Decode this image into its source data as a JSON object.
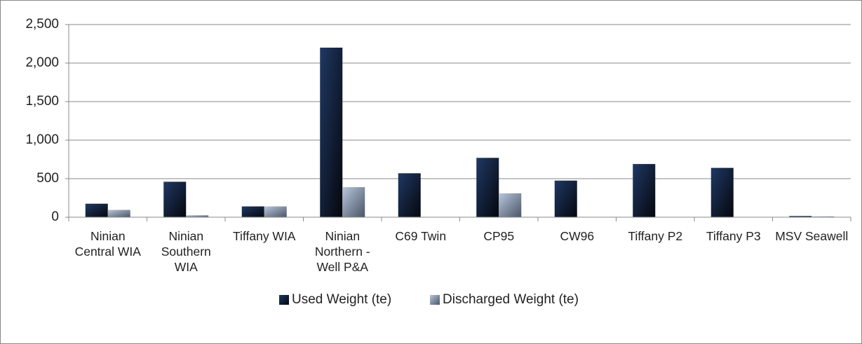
{
  "chart_data": {
    "type": "bar",
    "categories": [
      "Ninian Central WIA",
      "Ninian Southern WIA",
      "Tiffany WIA",
      "Ninian Northern - Well P&A",
      "C69 Twin",
      "CP95",
      "CW96",
      "Tiffany P2",
      "Tiffany P3",
      "MSV Seawell"
    ],
    "series": [
      {
        "name": "Used Weight (te)",
        "color": "#1f3864",
        "values": [
          175,
          460,
          140,
          2200,
          570,
          770,
          475,
          690,
          640,
          15
        ]
      },
      {
        "name": "Discharged Weight (te)",
        "color": "#b8c6dc",
        "values": [
          95,
          25,
          140,
          390,
          0,
          310,
          0,
          0,
          0,
          10
        ]
      }
    ],
    "ylim": [
      0,
      2500
    ],
    "yticks": [
      0,
      500,
      {
        "value": 1000,
        "label": "1,000"
      },
      {
        "value": 1500,
        "label": "1,500"
      },
      {
        "value": 2000,
        "label": "2,000"
      },
      {
        "value": 2500,
        "label": "2,500"
      }
    ],
    "grid": true,
    "legend": "bottom"
  }
}
